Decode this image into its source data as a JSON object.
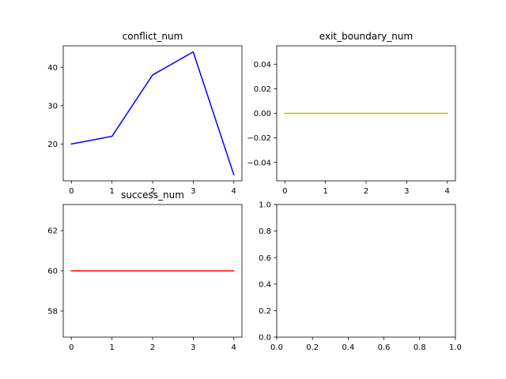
{
  "chart_data": [
    {
      "type": "line",
      "title": "conflict_num",
      "x": [
        0,
        1,
        2,
        3,
        4
      ],
      "series": [
        {
          "values": [
            20,
            22,
            38,
            44,
            12
          ],
          "color": "#0000ff"
        }
      ],
      "xlim": [
        -0.2,
        4.2
      ],
      "ylim": [
        10.4,
        45.6
      ],
      "xticks": [
        0,
        1,
        2,
        3,
        4
      ],
      "yticks": [
        20,
        30,
        40
      ],
      "xtick_labels": [
        "0",
        "1",
        "2",
        "3",
        "4"
      ],
      "ytick_labels": [
        "20",
        "30",
        "40"
      ],
      "grid": false
    },
    {
      "type": "line",
      "title": "exit_boundary_num",
      "x": [
        0,
        1,
        2,
        3,
        4
      ],
      "series": [
        {
          "values": [
            0,
            0,
            0,
            0,
            0
          ],
          "color": "#bfbf00"
        }
      ],
      "xlim": [
        -0.2,
        4.2
      ],
      "ylim": [
        -0.055,
        0.055
      ],
      "xticks": [
        0,
        1,
        2,
        3,
        4
      ],
      "yticks": [
        -0.04,
        -0.02,
        0.0,
        0.02,
        0.04
      ],
      "xtick_labels": [
        "0",
        "1",
        "2",
        "3",
        "4"
      ],
      "ytick_labels": [
        "−0.04",
        "−0.02",
        "0.00",
        "0.02",
        "0.04"
      ],
      "grid": false
    },
    {
      "type": "line",
      "title": "success_num",
      "x": [
        0,
        1,
        2,
        3,
        4
      ],
      "series": [
        {
          "values": [
            60,
            60,
            60,
            60,
            60
          ],
          "color": "#ff0000"
        }
      ],
      "xlim": [
        -0.2,
        4.2
      ],
      "ylim": [
        56.7,
        63.3
      ],
      "xticks": [
        0,
        1,
        2,
        3,
        4
      ],
      "yticks": [
        58,
        60,
        62
      ],
      "xtick_labels": [
        "0",
        "1",
        "2",
        "3",
        "4"
      ],
      "ytick_labels": [
        "58",
        "60",
        "62"
      ],
      "grid": false
    },
    {
      "type": "line",
      "title": "",
      "x": [],
      "series": [],
      "xlim": [
        0,
        1
      ],
      "ylim": [
        0,
        1
      ],
      "xticks": [
        0,
        0.2,
        0.4,
        0.6,
        0.8,
        1.0
      ],
      "yticks": [
        0,
        0.2,
        0.4,
        0.6,
        0.8,
        1.0
      ],
      "xtick_labels": [
        "0.0",
        "0.2",
        "0.4",
        "0.6",
        "0.8",
        "1.0"
      ],
      "ytick_labels": [
        "0.0",
        "0.2",
        "0.4",
        "0.6",
        "0.8",
        "1.0"
      ],
      "grid": false
    }
  ]
}
